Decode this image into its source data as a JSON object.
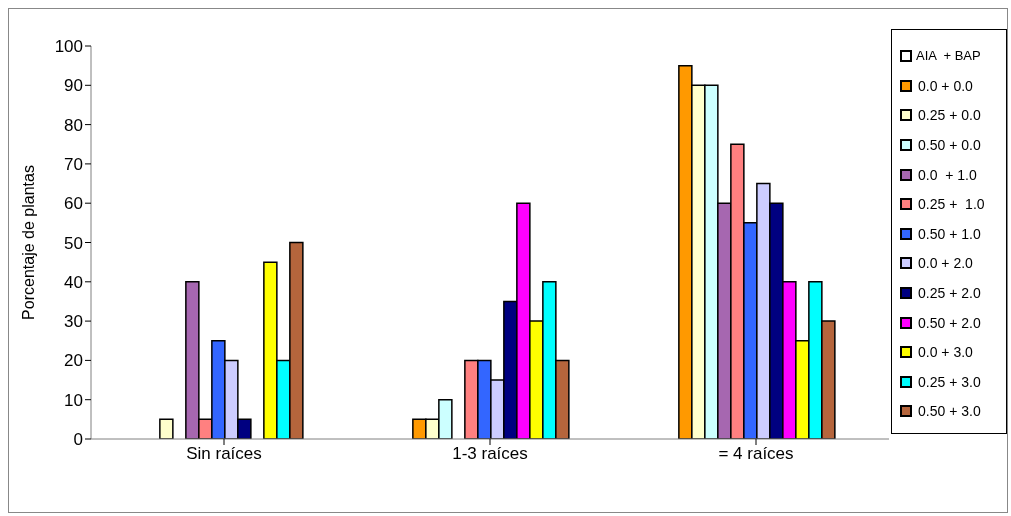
{
  "chart_data": {
    "type": "bar",
    "ylabel": "Porcentaje de plantas",
    "legend_title": "AIA  + BAP",
    "categories": [
      "Sin raíces",
      "1-3 raíces",
      "= 4 raíces"
    ],
    "series": [
      {
        "name": "0.0 + 0.0",
        "color": "#ff9900",
        "values": [
          0,
          5,
          95
        ]
      },
      {
        "name": "0.25 + 0.0",
        "color": "#ffffcc",
        "values": [
          5,
          5,
          90
        ]
      },
      {
        "name": "0.50 + 0.0",
        "color": "#ccffff",
        "values": [
          0,
          10,
          90
        ]
      },
      {
        "name": "0.0  + 1.0",
        "color": "#a667b0",
        "values": [
          40,
          0,
          60
        ]
      },
      {
        "name": "0.25 +  1.0",
        "color": "#ff8080",
        "values": [
          5,
          20,
          75
        ]
      },
      {
        "name": "0.50 + 1.0",
        "color": "#3366ff",
        "values": [
          25,
          20,
          55
        ]
      },
      {
        "name": "0.0 + 2.0",
        "color": "#ccccff",
        "values": [
          20,
          15,
          65
        ]
      },
      {
        "name": "0.25 + 2.0",
        "color": "#000080",
        "values": [
          5,
          35,
          60
        ]
      },
      {
        "name": "0.50 + 2.0",
        "color": "#ff00ff",
        "values": [
          0,
          60,
          40
        ]
      },
      {
        "name": "0.0 + 3.0",
        "color": "#ffff00",
        "values": [
          45,
          30,
          25
        ]
      },
      {
        "name": "0.25 + 3.0",
        "color": "#00ffff",
        "values": [
          20,
          40,
          40
        ]
      },
      {
        "name": "0.50 + 3.0",
        "color": "#b5653c",
        "values": [
          50,
          20,
          30
        ]
      }
    ],
    "ylim": [
      0,
      100
    ],
    "yticks": [
      0,
      10,
      20,
      30,
      40,
      50,
      60,
      70,
      80,
      90,
      100
    ],
    "grid": false,
    "legend": "right"
  }
}
